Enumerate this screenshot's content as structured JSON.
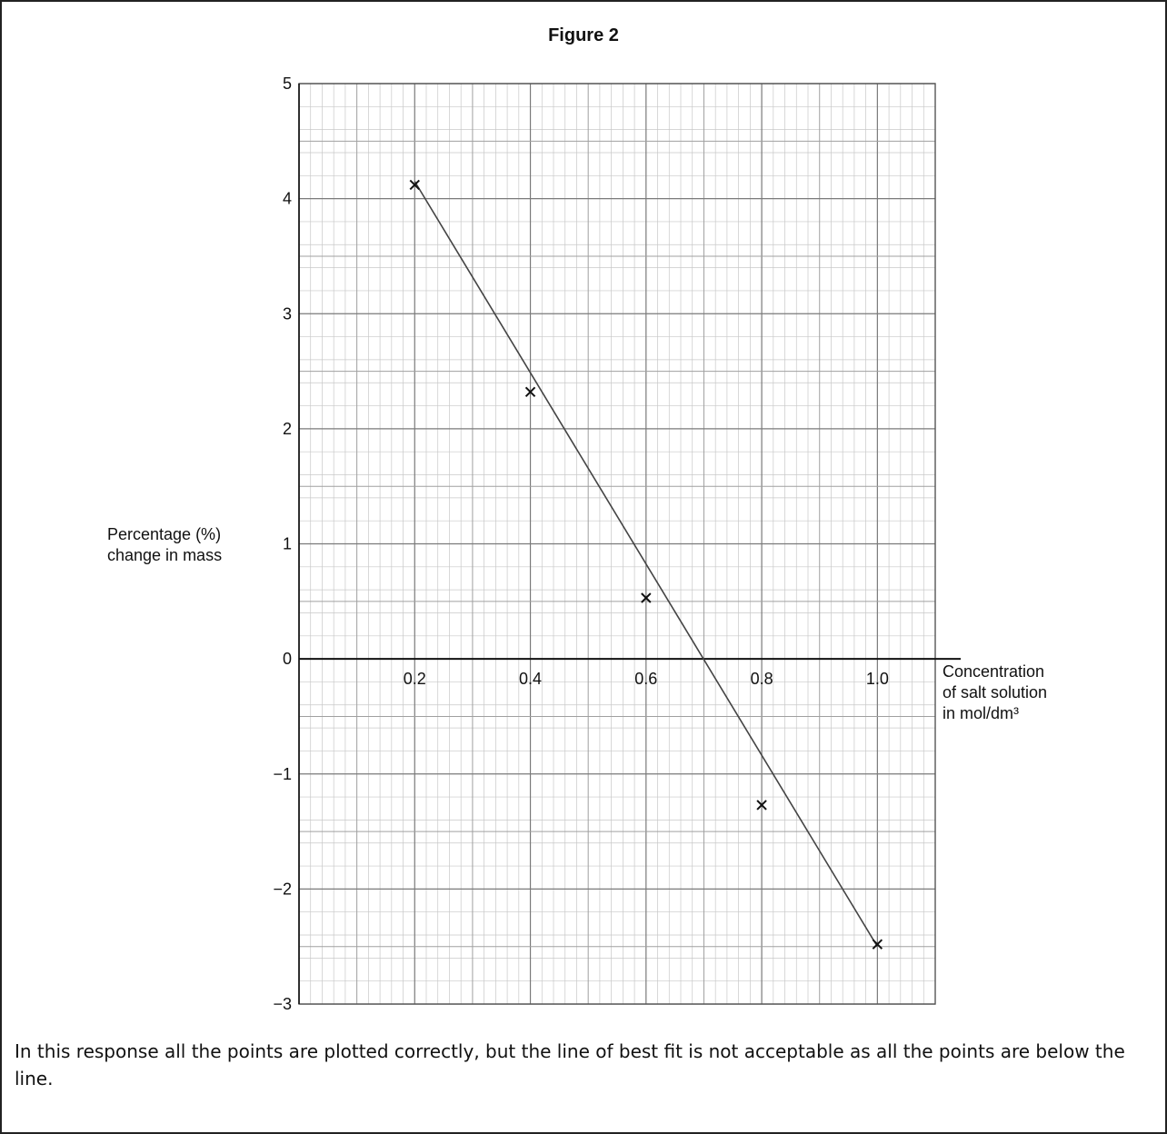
{
  "chart_data": {
    "type": "scatter",
    "title": "Figure 2",
    "xlabel": [
      "Concentration",
      "of salt solution",
      "in mol/dm³"
    ],
    "ylabel": [
      "Percentage (%)",
      "change in mass"
    ],
    "xlim": [
      0,
      1.1
    ],
    "ylim": [
      -3,
      5
    ],
    "x_ticks": [
      "0.2",
      "0.4",
      "0.6",
      "0.8",
      "1.0"
    ],
    "y_ticks": [
      "5",
      "4",
      "3",
      "2",
      "1",
      "0",
      "−1",
      "−2",
      "−3"
    ],
    "grid": true,
    "series": [
      {
        "points": [
          {
            "x": 0.2,
            "y": 4.12
          },
          {
            "x": 0.4,
            "y": 2.32
          },
          {
            "x": 0.6,
            "y": 0.53
          },
          {
            "x": 0.8,
            "y": -1.27
          },
          {
            "x": 1.0,
            "y": -2.48
          }
        ]
      }
    ],
    "best_fit_line": {
      "from": {
        "x": 0.2,
        "y": 4.15
      },
      "to": {
        "x": 1.0,
        "y": -2.5
      }
    }
  },
  "caption": "In this response all the points are plotted correctly, but the line of best fit is not acceptable as all the points are below the line."
}
